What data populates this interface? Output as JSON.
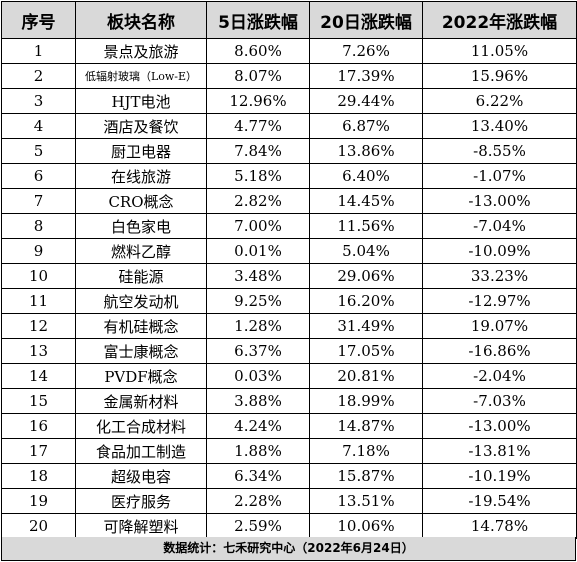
{
  "table": {
    "headers": [
      "序号",
      "板块名称",
      "5日涨跌幅",
      "20日涨跌幅",
      "2022年涨跌幅"
    ],
    "rows": [
      [
        "1",
        "景点及旅游",
        "8.60%",
        "7.26%",
        "11.05%"
      ],
      [
        "2",
        "低辐射玻璃（Low-E）",
        "8.07%",
        "17.39%",
        "15.96%"
      ],
      [
        "3",
        "HJT电池",
        "12.96%",
        "29.44%",
        "6.22%"
      ],
      [
        "4",
        "酒店及餐饮",
        "4.77%",
        "6.87%",
        "13.40%"
      ],
      [
        "5",
        "厨卫电器",
        "7.84%",
        "13.86%",
        "-8.55%"
      ],
      [
        "6",
        "在线旅游",
        "5.18%",
        "6.40%",
        "-1.07%"
      ],
      [
        "7",
        "CRO概念",
        "2.82%",
        "14.45%",
        "-13.00%"
      ],
      [
        "8",
        "白色家电",
        "7.00%",
        "11.56%",
        "-7.04%"
      ],
      [
        "9",
        "燃料乙醇",
        "0.01%",
        "5.04%",
        "-10.09%"
      ],
      [
        "10",
        "硅能源",
        "3.48%",
        "29.06%",
        "33.23%"
      ],
      [
        "11",
        "航空发动机",
        "9.25%",
        "16.20%",
        "-12.97%"
      ],
      [
        "12",
        "有机硅概念",
        "1.28%",
        "31.49%",
        "19.07%"
      ],
      [
        "13",
        "富士康概念",
        "6.37%",
        "17.05%",
        "-16.86%"
      ],
      [
        "14",
        "PVDF概念",
        "0.03%",
        "20.81%",
        "-2.04%"
      ],
      [
        "15",
        "金属新材料",
        "3.88%",
        "18.99%",
        "-7.03%"
      ],
      [
        "16",
        "化工合成材料",
        "4.24%",
        "14.87%",
        "-13.00%"
      ],
      [
        "17",
        "食品加工制造",
        "1.88%",
        "7.18%",
        "-13.81%"
      ],
      [
        "18",
        "超级电容",
        "6.34%",
        "15.87%",
        "-10.19%"
      ],
      [
        "19",
        "医疗服务",
        "2.28%",
        "13.51%",
        "-19.54%"
      ],
      [
        "20",
        "可降解塑料",
        "2.59%",
        "10.06%",
        "14.78%"
      ]
    ]
  },
  "footer": {
    "text": "数据统计：七禾研究中心（2022年6月24日）"
  }
}
